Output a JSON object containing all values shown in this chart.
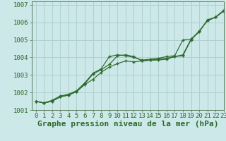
{
  "title": "Graphe pression niveau de la mer (hPa)",
  "background_color": "#cce8e8",
  "grid_color": "#b0d0d0",
  "line_color": "#2d6a2d",
  "marker_color": "#2d6a2d",
  "xlim": [
    -0.5,
    23
  ],
  "ylim": [
    1001,
    1007.2
  ],
  "yticks": [
    1001,
    1002,
    1003,
    1004,
    1005,
    1006,
    1007
  ],
  "xticks": [
    0,
    1,
    2,
    3,
    4,
    5,
    6,
    7,
    8,
    9,
    10,
    11,
    12,
    13,
    14,
    15,
    16,
    17,
    18,
    19,
    20,
    21,
    22,
    23
  ],
  "series1": [
    1001.5,
    1001.4,
    1001.5,
    1001.75,
    1001.85,
    1002.05,
    1002.5,
    1003.05,
    1003.3,
    1003.6,
    1004.1,
    1004.15,
    1004.05,
    1003.8,
    1003.85,
    1003.85,
    1003.9,
    1004.05,
    1004.1,
    1005.0,
    1005.5,
    1006.1,
    1006.3,
    1006.65
  ],
  "series2": [
    1001.5,
    1001.4,
    1001.5,
    1001.75,
    1001.85,
    1002.05,
    1002.45,
    1002.75,
    1003.15,
    1003.45,
    1003.65,
    1003.8,
    1003.75,
    1003.8,
    1003.85,
    1003.9,
    1003.95,
    1004.05,
    1004.15,
    1005.05,
    1005.45,
    1006.15,
    1006.3,
    1006.7
  ],
  "series3": [
    1001.5,
    1001.4,
    1001.55,
    1001.8,
    1001.9,
    1002.1,
    1002.55,
    1003.1,
    1003.35,
    1004.05,
    1004.15,
    1004.1,
    1004.0,
    1003.85,
    1003.9,
    1003.95,
    1004.05,
    1004.1,
    1005.0,
    1005.05,
    1005.5,
    1006.1,
    1006.3,
    1006.65
  ],
  "tick_fontsize": 6.5,
  "xlabel_fontsize": 8
}
